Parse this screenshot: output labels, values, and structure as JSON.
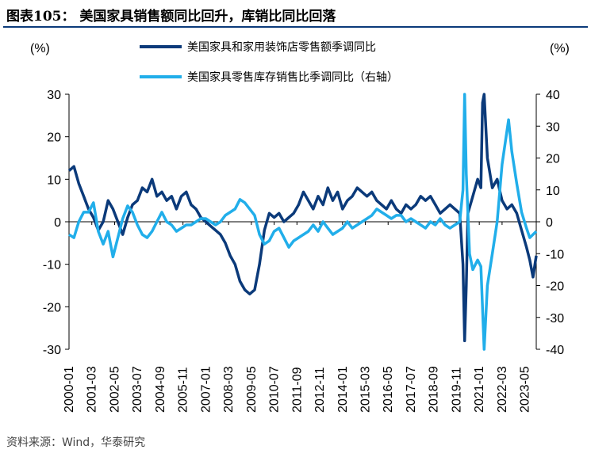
{
  "header": {
    "title": "图表105： 美国家具销售额同比回升，库销比同比回落"
  },
  "footer": {
    "source": "资料来源：Wind，华泰研究"
  },
  "colors": {
    "series_dark": "#0b3a7a",
    "series_light": "#21aeea",
    "rule": "#0b3a7a"
  },
  "chart_data": {
    "type": "line",
    "left_unit": "(%)",
    "right_unit": "(%)",
    "ylim_left": [
      -30,
      30
    ],
    "ylim_right": [
      -40,
      40
    ],
    "yticks_left": [
      "30",
      "20",
      "10",
      "0",
      "-10",
      "-20",
      "-30"
    ],
    "yticks_right": [
      "40",
      "30",
      "20",
      "10",
      "0",
      "-10",
      "-20",
      "-30",
      "-40"
    ],
    "x_tick_labels": [
      "2000-01",
      "2001-03",
      "2002-05",
      "2003-07",
      "2004-09",
      "2005-11",
      "2007-01",
      "2008-03",
      "2009-05",
      "2010-07",
      "2011-09",
      "2012-11",
      "2014-01",
      "2015-03",
      "2016-05",
      "2017-07",
      "2018-09",
      "2019-11",
      "2021-01",
      "2022-03",
      "2023-05"
    ],
    "legend_position": "top",
    "series": [
      {
        "name": "美国家具和家用装饰店零售额季调同比",
        "axis": "left",
        "color": "#0b3a7a",
        "points": [
          [
            "2000-01",
            12
          ],
          [
            "2000-04",
            13
          ],
          [
            "2000-07",
            9
          ],
          [
            "2000-10",
            6
          ],
          [
            "2001-01",
            3
          ],
          [
            "2001-04",
            1
          ],
          [
            "2001-07",
            -2
          ],
          [
            "2001-10",
            0
          ],
          [
            "2002-01",
            5
          ],
          [
            "2002-04",
            3
          ],
          [
            "2002-07",
            0
          ],
          [
            "2002-10",
            -3
          ],
          [
            "2003-01",
            1
          ],
          [
            "2003-04",
            4
          ],
          [
            "2003-07",
            5
          ],
          [
            "2003-10",
            8
          ],
          [
            "2004-01",
            7
          ],
          [
            "2004-04",
            10
          ],
          [
            "2004-07",
            6
          ],
          [
            "2004-10",
            7
          ],
          [
            "2005-01",
            5
          ],
          [
            "2005-04",
            6
          ],
          [
            "2005-07",
            3
          ],
          [
            "2005-10",
            6
          ],
          [
            "2006-01",
            7
          ],
          [
            "2006-04",
            4
          ],
          [
            "2006-07",
            3
          ],
          [
            "2006-10",
            1
          ],
          [
            "2007-01",
            0
          ],
          [
            "2007-04",
            -1
          ],
          [
            "2007-07",
            -2
          ],
          [
            "2007-10",
            -3
          ],
          [
            "2008-01",
            -5
          ],
          [
            "2008-04",
            -8
          ],
          [
            "2008-07",
            -10
          ],
          [
            "2008-10",
            -14
          ],
          [
            "2009-01",
            -16
          ],
          [
            "2009-04",
            -17
          ],
          [
            "2009-07",
            -16
          ],
          [
            "2009-10",
            -10
          ],
          [
            "2010-01",
            -2
          ],
          [
            "2010-04",
            2
          ],
          [
            "2010-07",
            1
          ],
          [
            "2010-10",
            2
          ],
          [
            "2011-01",
            0
          ],
          [
            "2011-04",
            1
          ],
          [
            "2011-07",
            2
          ],
          [
            "2011-10",
            4
          ],
          [
            "2012-01",
            7
          ],
          [
            "2012-04",
            5
          ],
          [
            "2012-07",
            3
          ],
          [
            "2012-10",
            6
          ],
          [
            "2013-01",
            4
          ],
          [
            "2013-04",
            8
          ],
          [
            "2013-07",
            5
          ],
          [
            "2013-10",
            7
          ],
          [
            "2014-01",
            3
          ],
          [
            "2014-04",
            5
          ],
          [
            "2014-07",
            6
          ],
          [
            "2014-10",
            8
          ],
          [
            "2015-01",
            7
          ],
          [
            "2015-04",
            6
          ],
          [
            "2015-07",
            7
          ],
          [
            "2015-10",
            5
          ],
          [
            "2016-01",
            4
          ],
          [
            "2016-04",
            3
          ],
          [
            "2016-07",
            5
          ],
          [
            "2016-10",
            3
          ],
          [
            "2017-01",
            2
          ],
          [
            "2017-04",
            4
          ],
          [
            "2017-07",
            3
          ],
          [
            "2017-10",
            4
          ],
          [
            "2018-01",
            6
          ],
          [
            "2018-04",
            5
          ],
          [
            "2018-07",
            6
          ],
          [
            "2018-10",
            4
          ],
          [
            "2019-01",
            2
          ],
          [
            "2019-04",
            3
          ],
          [
            "2019-07",
            4
          ],
          [
            "2019-10",
            3
          ],
          [
            "2020-01",
            2
          ],
          [
            "2020-03",
            -10
          ],
          [
            "2020-04",
            -28
          ],
          [
            "2020-05",
            -15
          ],
          [
            "2020-06",
            2
          ],
          [
            "2020-09",
            6
          ],
          [
            "2020-12",
            10
          ],
          [
            "2021-02",
            8
          ],
          [
            "2021-03",
            28
          ],
          [
            "2021-04",
            30
          ],
          [
            "2021-06",
            15
          ],
          [
            "2021-09",
            8
          ],
          [
            "2021-12",
            10
          ],
          [
            "2022-03",
            5
          ],
          [
            "2022-06",
            3
          ],
          [
            "2022-09",
            4
          ],
          [
            "2022-12",
            2
          ],
          [
            "2023-03",
            -2
          ],
          [
            "2023-06",
            -6
          ],
          [
            "2023-08",
            -9
          ],
          [
            "2023-10",
            -13
          ],
          [
            "2023-12",
            -8
          ]
        ]
      },
      {
        "name": "美国家具零售库存销售比季调同比（右轴）",
        "axis": "right",
        "color": "#21aeea",
        "points": [
          [
            "2000-01",
            -4
          ],
          [
            "2000-04",
            -5
          ],
          [
            "2000-07",
            0
          ],
          [
            "2000-10",
            3
          ],
          [
            "2001-01",
            3
          ],
          [
            "2001-04",
            6
          ],
          [
            "2001-07",
            -3
          ],
          [
            "2001-10",
            -7
          ],
          [
            "2002-01",
            -3
          ],
          [
            "2002-04",
            -11
          ],
          [
            "2002-07",
            -5
          ],
          [
            "2002-10",
            1
          ],
          [
            "2003-01",
            5
          ],
          [
            "2003-04",
            3
          ],
          [
            "2003-07",
            -1
          ],
          [
            "2003-10",
            -4
          ],
          [
            "2004-01",
            -5
          ],
          [
            "2004-04",
            -3
          ],
          [
            "2004-07",
            0
          ],
          [
            "2004-10",
            3
          ],
          [
            "2005-01",
            0
          ],
          [
            "2005-04",
            -1
          ],
          [
            "2005-07",
            -3
          ],
          [
            "2005-10",
            -2
          ],
          [
            "2006-01",
            -1
          ],
          [
            "2006-04",
            -1
          ],
          [
            "2006-07",
            0
          ],
          [
            "2006-10",
            1
          ],
          [
            "2007-01",
            1
          ],
          [
            "2007-04",
            0
          ],
          [
            "2007-07",
            -1
          ],
          [
            "2007-10",
            0
          ],
          [
            "2008-01",
            2
          ],
          [
            "2008-04",
            3
          ],
          [
            "2008-07",
            4
          ],
          [
            "2008-10",
            7
          ],
          [
            "2009-01",
            6
          ],
          [
            "2009-04",
            4
          ],
          [
            "2009-07",
            2
          ],
          [
            "2009-10",
            -4
          ],
          [
            "2010-01",
            -7
          ],
          [
            "2010-04",
            -6
          ],
          [
            "2010-07",
            -3
          ],
          [
            "2010-10",
            -2
          ],
          [
            "2011-01",
            -5
          ],
          [
            "2011-04",
            -8
          ],
          [
            "2011-07",
            -6
          ],
          [
            "2011-10",
            -5
          ],
          [
            "2012-01",
            -4
          ],
          [
            "2012-04",
            -3
          ],
          [
            "2012-07",
            -1
          ],
          [
            "2012-10",
            -3
          ],
          [
            "2013-01",
            0
          ],
          [
            "2013-04",
            -2
          ],
          [
            "2013-07",
            -4
          ],
          [
            "2013-10",
            -3
          ],
          [
            "2014-01",
            -2
          ],
          [
            "2014-04",
            0
          ],
          [
            "2014-07",
            -2
          ],
          [
            "2014-10",
            -1
          ],
          [
            "2015-01",
            0
          ],
          [
            "2015-04",
            1
          ],
          [
            "2015-07",
            2
          ],
          [
            "2015-10",
            4
          ],
          [
            "2016-01",
            3
          ],
          [
            "2016-04",
            2
          ],
          [
            "2016-07",
            1
          ],
          [
            "2016-10",
            2
          ],
          [
            "2017-01",
            2
          ],
          [
            "2017-04",
            0
          ],
          [
            "2017-07",
            1
          ],
          [
            "2017-10",
            0
          ],
          [
            "2018-01",
            -1
          ],
          [
            "2018-04",
            -2
          ],
          [
            "2018-07",
            0
          ],
          [
            "2018-10",
            -1
          ],
          [
            "2019-01",
            1
          ],
          [
            "2019-04",
            -1
          ],
          [
            "2019-07",
            -2
          ],
          [
            "2019-10",
            -1
          ],
          [
            "2020-01",
            0
          ],
          [
            "2020-03",
            10
          ],
          [
            "2020-04",
            40
          ],
          [
            "2020-05",
            15
          ],
          [
            "2020-07",
            -10
          ],
          [
            "2020-09",
            -15
          ],
          [
            "2020-12",
            -12
          ],
          [
            "2021-02",
            -14
          ],
          [
            "2021-04",
            -40
          ],
          [
            "2021-06",
            -20
          ],
          [
            "2021-09",
            -10
          ],
          [
            "2021-12",
            0
          ],
          [
            "2022-03",
            18
          ],
          [
            "2022-05",
            25
          ],
          [
            "2022-07",
            32
          ],
          [
            "2022-09",
            22
          ],
          [
            "2022-12",
            12
          ],
          [
            "2023-03",
            3
          ],
          [
            "2023-06",
            -2
          ],
          [
            "2023-08",
            -5
          ],
          [
            "2023-10",
            -4
          ],
          [
            "2023-12",
            -3
          ]
        ]
      }
    ]
  }
}
